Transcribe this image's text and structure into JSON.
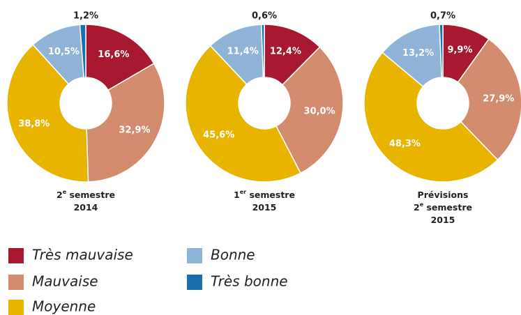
{
  "legend": {
    "items": [
      {
        "name": "Très mauvaise",
        "color": "#a6192e"
      },
      {
        "name": "Mauvaise",
        "color": "#d38b6e"
      },
      {
        "name": "Moyenne",
        "color": "#e8b400"
      },
      {
        "name": "Bonne",
        "color": "#8fb4d8"
      },
      {
        "name": "Très bonne",
        "color": "#1a6fae"
      }
    ]
  },
  "chart_data": [
    {
      "type": "donut",
      "title_lines": [
        [
          {
            "text": "2"
          },
          {
            "text": "e",
            "sup": true
          },
          {
            "text": " semestre"
          }
        ],
        [
          {
            "text": "2014"
          }
        ]
      ],
      "values": [
        16.6,
        32.9,
        38.8,
        10.5,
        1.2
      ],
      "value_labels": [
        "16,6%",
        "32,9%",
        "38,8%",
        "10,5%",
        "1,2%"
      ]
    },
    {
      "type": "donut",
      "title_lines": [
        [
          {
            "text": "1"
          },
          {
            "text": "er",
            "sup": true
          },
          {
            "text": " semestre"
          }
        ],
        [
          {
            "text": "2015"
          }
        ]
      ],
      "values": [
        12.4,
        30.0,
        45.6,
        11.4,
        0.6
      ],
      "value_labels": [
        "12,4%",
        "30,0%",
        "45,6%",
        "11,4%",
        "0,6%"
      ]
    },
    {
      "type": "donut",
      "title_lines": [
        [
          {
            "text": "Prévisions"
          }
        ],
        [
          {
            "text": "2"
          },
          {
            "text": "e",
            "sup": true
          },
          {
            "text": " semestre"
          }
        ],
        [
          {
            "text": "2015"
          }
        ]
      ],
      "values": [
        9.9,
        27.9,
        48.3,
        13.2,
        0.7
      ],
      "value_labels": [
        "9,9%",
        "27,9%",
        "48,3%",
        "13,2%",
        "0,7%"
      ]
    }
  ]
}
